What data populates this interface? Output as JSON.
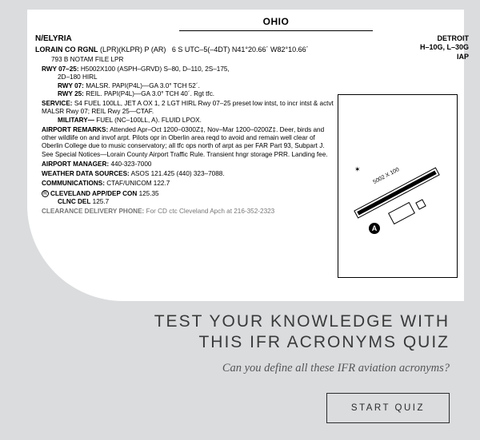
{
  "document": {
    "state": "OHIO",
    "city_suffix": "N/ELYRIA",
    "airport_name": "LORAIN CO RGNL",
    "airport_ids": "(LPR)(KLPR) P (AR)",
    "airport_meta": "6 S    UTC–5(–4DT)    N41°20.66´ W82°10.66´",
    "right_header_1": "DETROIT",
    "right_header_2": "H–10G, L–30G",
    "right_header_3": "IAP",
    "line_notam": "793    B    NOTAM FILE LPR",
    "rwy_main_label": "RWY 07–25:",
    "rwy_main_text": "H5002X100 (ASPH–GRVD)    S–80, D–110, 2S–175,",
    "rwy_main_text2": "2D–180    HIRL",
    "rwy07_label": "RWY 07:",
    "rwy07_text": "MALSR. PAPI(P4L)—GA 3.0° TCH 52´.",
    "rwy25_label": "RWY 25:",
    "rwy25_text": "REIL. PAPI(P4L)—GA 3.0° TCH 40´. Rgt tfc.",
    "service_label": "SERVICE:",
    "service_text": "S4    FUEL  100LL, JET A    OX 1, 2    LGT  HIRL Rwy 07–25 preset low intst, to incr intst & actvt MALSR Rwy 07; REIL Rwy 25—CTAF.",
    "military_label": "MILITARY—",
    "military_text": "FUEL (NC–100LL, A). FLUID LPOX.",
    "remarks_label": "AIRPORT REMARKS:",
    "remarks_text": "Attended Apr–Oct 1200–0300Z‡, Nov–Mar 1200–0200Z‡. Deer, birds and other wildlife on and invof arpt. Pilots opr in Oberlin area reqd to avoid and remain well clear of Oberlin College due to music conservatory; all tfc ops north of arpt as per FAR Part 93, Subpart J. See Special Notices—Lorain County Airport Traffic Rule. Transient hngr storage PRR. Landing fee.",
    "mgr_label": "AIRPORT MANAGER:",
    "mgr_text": "440-323-7000",
    "wx_label": "WEATHER DATA SOURCES:",
    "wx_text": "ASOS 121.425 (440) 323–7088.",
    "comm_label": "COMMUNICATIONS:",
    "comm_text": "CTAF/UNICOM 122.7",
    "app_label": "CLEVELAND APP/DEP CON",
    "app_text": "125.35",
    "clnc_label": "CLNC DEL",
    "clnc_text": "125.7",
    "clearance_label": "CLEARANCE DELIVERY PHONE:",
    "clearance_text": "For CD ctc Cleveland Apch at 216-352-2323",
    "diagram": {
      "runway_label": "5002 X 100",
      "marker": "A"
    }
  },
  "promo": {
    "title_line1": "TEST YOUR KNOWLEDGE WITH",
    "title_line2": "THIS IFR ACRONYMS QUIZ",
    "subtitle": "Can you define all these IFR aviation acronyms?",
    "cta": "START QUIZ"
  },
  "colors": {
    "page_bg": "#dadcde",
    "card_bg": "#ffffff",
    "text": "#000000",
    "promo_title": "#3a3a3a",
    "promo_sub": "#555555",
    "cta_border": "#2b2b2b"
  }
}
